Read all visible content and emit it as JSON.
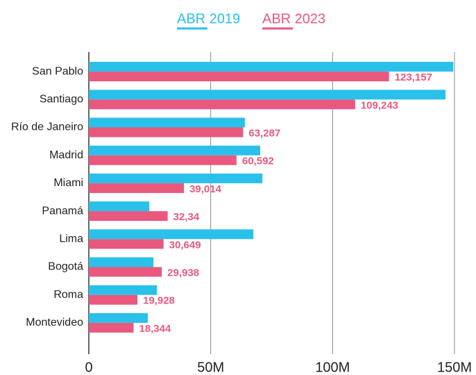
{
  "chart_data": {
    "type": "bar",
    "orientation": "horizontal",
    "categories": [
      "San Pablo",
      "Santiago",
      "Río de Janeiro",
      "Madrid",
      "Miami",
      "Panamá",
      "Lima",
      "Bogotá",
      "Roma",
      "Montevideo"
    ],
    "series": [
      {
        "name": "ABR 2019",
        "color": "#29c0ea",
        "values": [
          149.5,
          146.3,
          64.0,
          70.3,
          71.2,
          24.8,
          67.5,
          26.5,
          27.9,
          24.2
        ]
      },
      {
        "name": "ABR 2023",
        "color": "#e9587e",
        "values": [
          123.157,
          109.243,
          63.287,
          60.592,
          39.014,
          32.34,
          30.649,
          29.938,
          19.928,
          18.344
        ],
        "value_labels": [
          "123,157",
          "109,243",
          "63,287",
          "60,592",
          "39,014",
          "32,34",
          "30,649",
          "29,938",
          "19,928",
          "18,344"
        ]
      }
    ],
    "xlim": [
      0,
      150
    ],
    "xticks": [
      0,
      {
        "value": 50,
        "label": "50M"
      },
      {
        "value": 100,
        "label": "100M"
      },
      {
        "value": 150,
        "label": "150M"
      }
    ],
    "grid": true
  }
}
